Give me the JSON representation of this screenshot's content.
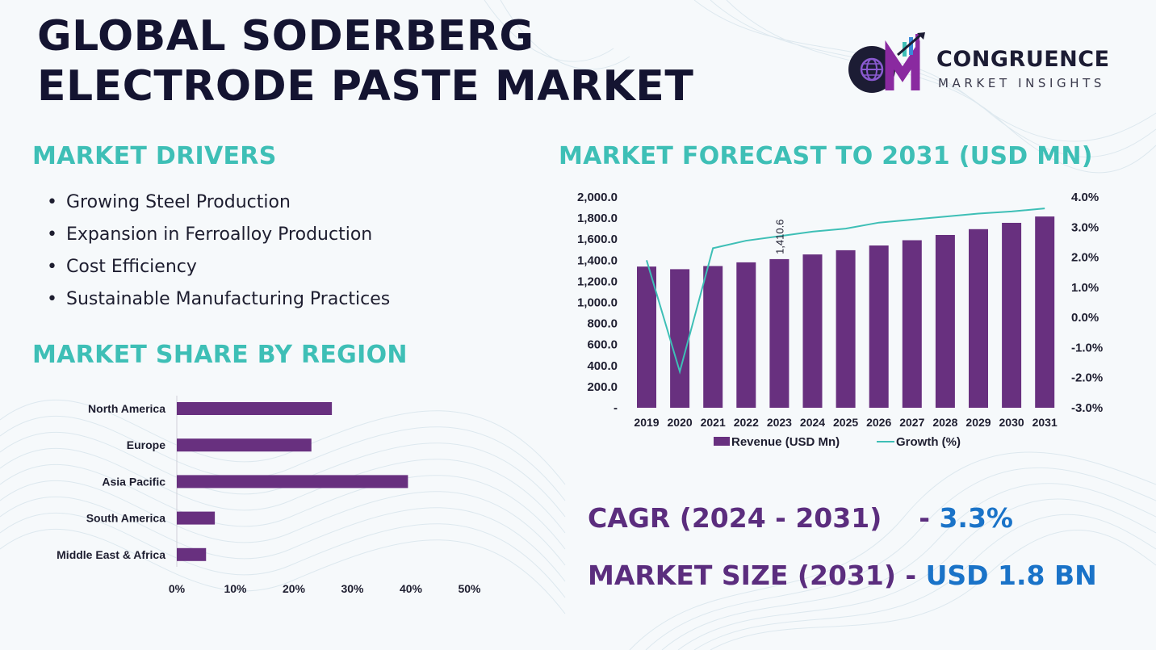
{
  "title": {
    "line1": "GLOBAL SODERBERG",
    "line2": "ELECTRODE PASTE MARKET"
  },
  "logo": {
    "initials": "CM",
    "name": "CONGRUENCE",
    "tagline": "MARKET INSIGHTS",
    "icon": "globe-bar-chart-logo-icon"
  },
  "colors": {
    "teal": "#3ebfb6",
    "purple": "#5b2d7e",
    "bar_purple": "#68307f",
    "blue": "#1a73c8",
    "navy": "#141431"
  },
  "drivers": {
    "heading": "MARKET DRIVERS",
    "items": [
      "Growing Steel Production",
      "Expansion in Ferroalloy Production",
      "Cost Efficiency",
      "Sustainable Manufacturing Practices"
    ]
  },
  "forecast": {
    "heading": "MARKET FORECAST TO 2031 (USD MN)"
  },
  "region": {
    "heading": "MARKET SHARE BY REGION"
  },
  "summary": {
    "cagr_label": "CAGR (2024 - 2031)",
    "cagr_dash": "- ",
    "cagr_value": "3.3%",
    "size_label": "MARKET SIZE (2031)",
    "size_dash": " - ",
    "size_value": "USD 1.8 BN"
  },
  "chart_data": [
    {
      "type": "bar",
      "categories": [
        "2019",
        "2020",
        "2021",
        "2022",
        "2023",
        "2024",
        "2025",
        "2026",
        "2027",
        "2028",
        "2029",
        "2030",
        "2031"
      ],
      "series": [
        {
          "name": "Revenue (USD Mn)",
          "type": "bar",
          "axis": "left",
          "values": [
            1340,
            1315,
            1345,
            1380,
            1410.6,
            1455,
            1495,
            1540,
            1590,
            1640,
            1695,
            1755,
            1815
          ]
        },
        {
          "name": "Growth (%)",
          "type": "line",
          "axis": "right",
          "values": [
            1.9,
            -1.8,
            2.3,
            2.55,
            2.7,
            2.85,
            2.95,
            3.15,
            3.25,
            3.35,
            3.45,
            3.52,
            3.62
          ]
        }
      ],
      "data_labels": [
        {
          "category": "2023",
          "text": "1,410.6"
        }
      ],
      "y_left": {
        "ylim": [
          0,
          2000
        ],
        "ticks": [
          "-",
          "200.0",
          "400.0",
          "600.0",
          "800.0",
          "1,000.0",
          "1,200.0",
          "1,400.0",
          "1,600.0",
          "1,800.0",
          "2,000.0"
        ]
      },
      "y_right": {
        "ylim": [
          -3,
          4
        ],
        "ticks": [
          "-3.0%",
          "-2.0%",
          "-1.0%",
          "0.0%",
          "1.0%",
          "2.0%",
          "3.0%",
          "4.0%"
        ]
      },
      "legend": "bottom",
      "grid": false
    },
    {
      "type": "bar",
      "orientation": "horizontal",
      "categories": [
        "North America",
        "Europe",
        "Asia Pacific",
        "South America",
        "Middle East & Africa"
      ],
      "values": [
        26.5,
        23,
        39.5,
        6.5,
        5
      ],
      "xlim": [
        0,
        50
      ],
      "x_ticks": [
        "0%",
        "10%",
        "20%",
        "30%",
        "40%",
        "50%"
      ],
      "grid": false
    }
  ]
}
